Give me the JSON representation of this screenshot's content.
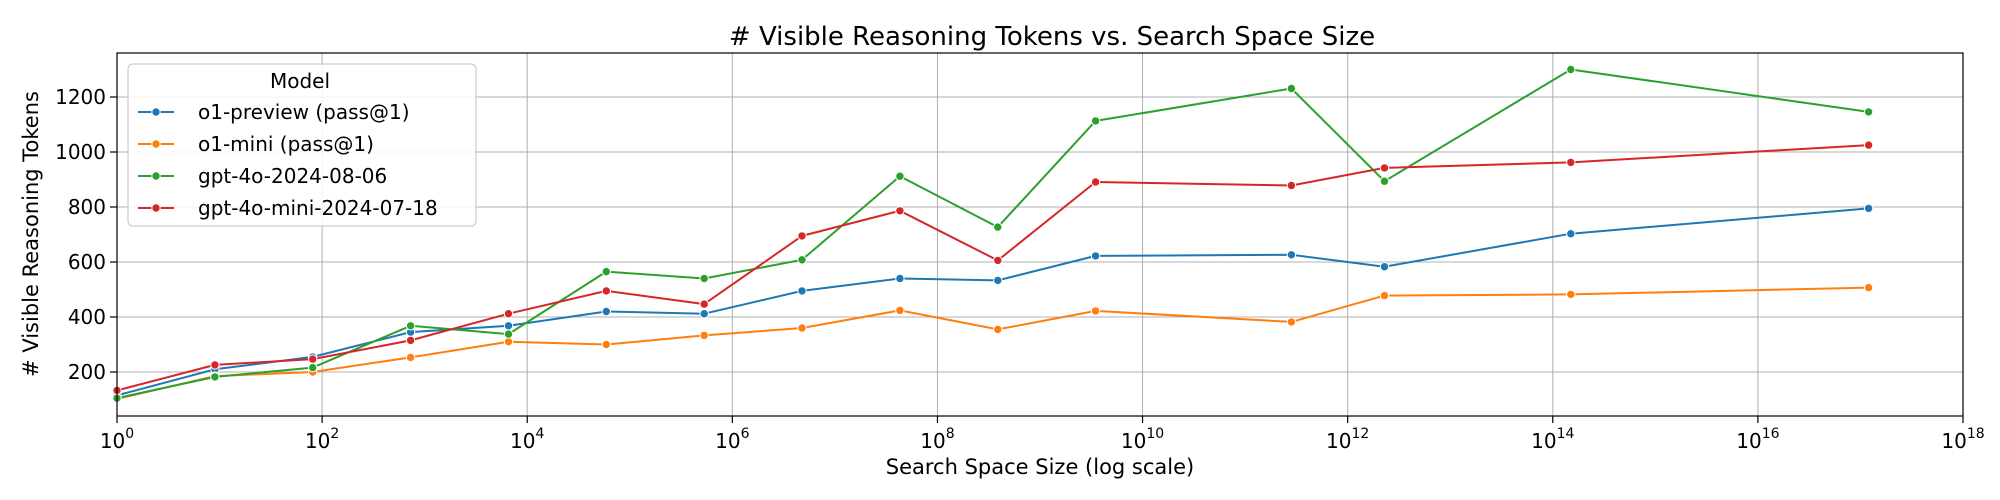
{
  "chart_data": {
    "type": "line",
    "title": "# Visible Reasoning Tokens vs. Search Space Size",
    "xlabel": "Search Space Size (log scale)",
    "ylabel": "# Visible Reasoning Tokens",
    "x_scale": "log",
    "xlim": [
      1,
      1e+18
    ],
    "ylim": [
      40,
      1360
    ],
    "grid": true,
    "x_ticks": [
      {
        "value": 1,
        "base": "10",
        "exp": "0"
      },
      {
        "value": 100,
        "base": "10",
        "exp": "2"
      },
      {
        "value": 10000,
        "base": "10",
        "exp": "4"
      },
      {
        "value": 1000000.0,
        "base": "10",
        "exp": "6"
      },
      {
        "value": 100000000.0,
        "base": "10",
        "exp": "8"
      },
      {
        "value": 10000000000.0,
        "base": "10",
        "exp": "10"
      },
      {
        "value": 1000000000000.0,
        "base": "10",
        "exp": "12"
      },
      {
        "value": 100000000000000.0,
        "base": "10",
        "exp": "14"
      },
      {
        "value": 1e+16,
        "base": "10",
        "exp": "16"
      },
      {
        "value": 1e+18,
        "base": "10",
        "exp": "18"
      }
    ],
    "y_ticks": [
      200,
      400,
      600,
      800,
      1000,
      1200
    ],
    "legend": {
      "title": "Model",
      "placement": "upper-left"
    },
    "x": [
      1,
      9,
      81,
      729,
      6561,
      59049,
      531441,
      4782969,
      43046721,
      387420489,
      3486784401,
      282429536481,
      2287679200000.0,
      150000000000000.0,
      1.2e+17
    ],
    "series": [
      {
        "name": "o1-preview (pass@1)",
        "color": "#1f77b4",
        "values": [
          115,
          210,
          255,
          345,
          368,
          420,
          412,
          495,
          540,
          533,
          622,
          626,
          583,
          703,
          795
        ]
      },
      {
        "name": "o1-mini (pass@1)",
        "color": "#ff7f0e",
        "values": [
          102,
          185,
          200,
          253,
          310,
          300,
          333,
          360,
          424,
          355,
          422,
          382,
          478,
          482,
          507
        ]
      },
      {
        "name": "gpt-4o-2024-08-06",
        "color": "#2ca02c",
        "values": [
          105,
          182,
          216,
          368,
          338,
          565,
          540,
          608,
          912,
          727,
          1113,
          1231,
          894,
          1300,
          1146
        ]
      },
      {
        "name": "gpt-4o-mini-2024-07-18",
        "color": "#d62728",
        "values": [
          133,
          226,
          247,
          315,
          412,
          495,
          447,
          695,
          786,
          606,
          891,
          878,
          942,
          962,
          1025
        ]
      }
    ]
  }
}
